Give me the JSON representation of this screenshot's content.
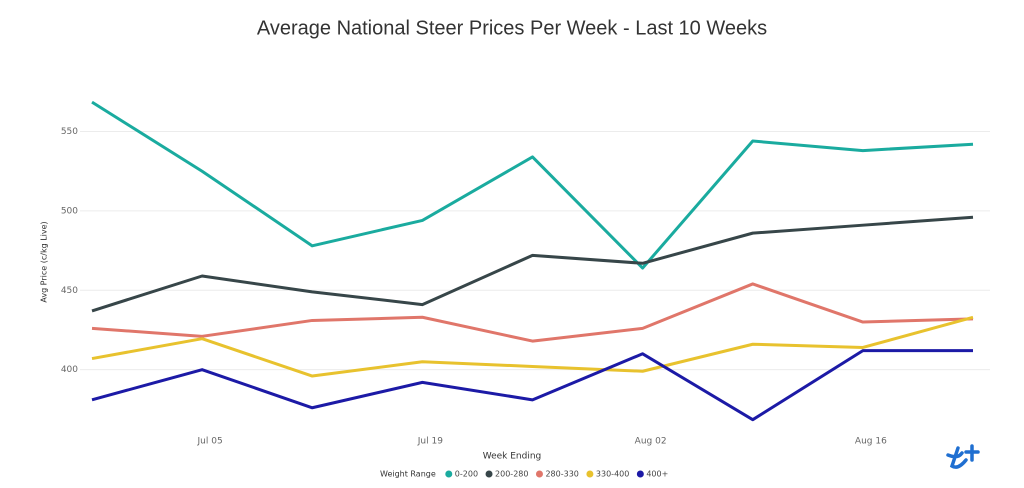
{
  "chart_data": {
    "type": "line",
    "title": "Average National Steer Prices Per Week - Last 10 Weeks",
    "x_label": "Week Ending",
    "y_label": "Avg Price (c/kg Live)",
    "legend_title": "Weight Range",
    "categories": [
      null,
      "Jul 05",
      null,
      "Jul 19",
      null,
      "Aug 02",
      null,
      "Aug 16",
      null
    ],
    "ylim": [
      362,
      573
    ],
    "yticks": [
      400,
      450,
      500,
      550
    ],
    "grid": true,
    "legend": "bottom",
    "series": [
      {
        "name": "0-200",
        "color": "#1aab9f",
        "values": [
          568.5,
          525,
          478,
          494,
          534,
          464,
          544,
          538,
          542
        ]
      },
      {
        "name": "200-280",
        "color": "#374649",
        "values": [
          437,
          459,
          449,
          441,
          472,
          467,
          486,
          491,
          496
        ]
      },
      {
        "name": "280-330",
        "color": "#e0766a",
        "values": [
          426,
          421,
          431,
          433,
          418,
          426,
          454,
          430,
          432
        ]
      },
      {
        "name": "330-400",
        "color": "#e8c22e",
        "values": [
          407,
          419.5,
          396,
          405,
          402,
          399,
          416,
          414,
          433
        ]
      },
      {
        "name": "400+",
        "color": "#1c1aa6",
        "values": [
          381,
          400,
          376,
          392,
          381,
          410,
          368.5,
          412,
          412
        ]
      }
    ]
  }
}
